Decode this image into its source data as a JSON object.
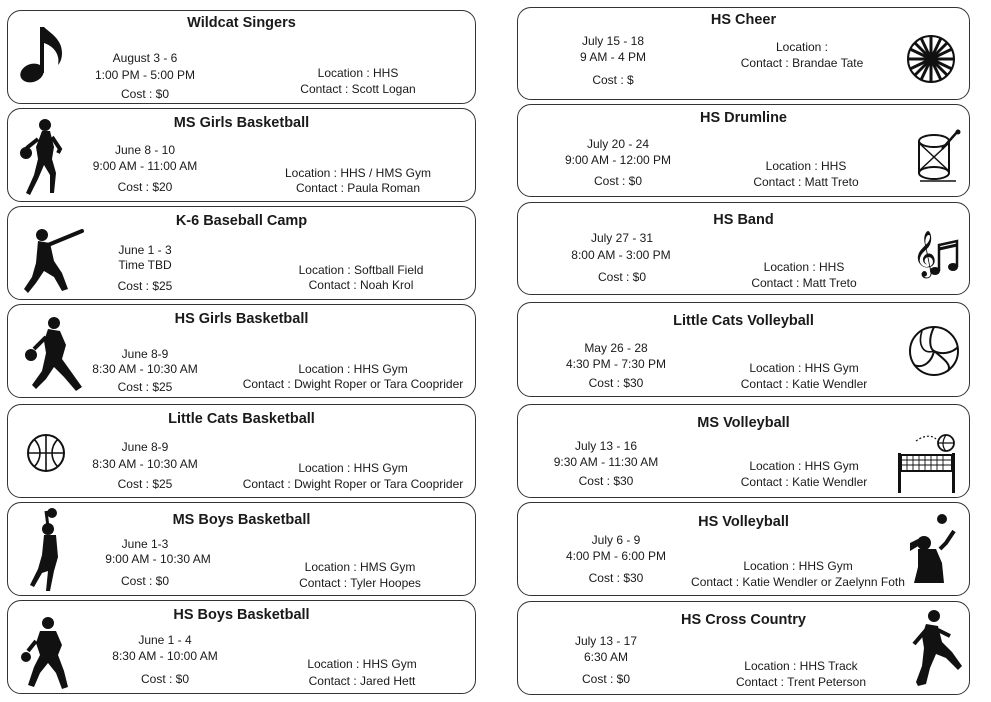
{
  "camps": {
    "left": [
      {
        "title": "Wildcat Singers",
        "dates": "August 3 - 6",
        "times": "1:00 PM - 5:00 PM",
        "cost": "Cost : $0",
        "location": "Location : HHS",
        "contact": "Contact : Scott Logan",
        "icon": "music-note-icon"
      },
      {
        "title": "MS Girls Basketball",
        "dates": "June 8 - 10",
        "times": "9:00 AM - 11:00 AM",
        "cost": "Cost : $20",
        "location": "Location : HHS / HMS Gym",
        "contact": "Contact : Paula Roman",
        "icon": "girl-basketball-player-icon"
      },
      {
        "title": "K-6 Baseball Camp",
        "dates": "June 1 - 3",
        "times": "Time TBD",
        "cost": "Cost : $25",
        "location": "Location : Softball Field",
        "contact": "Contact : Noah Krol",
        "icon": "baseball-batter-icon"
      },
      {
        "title": "HS Girls Basketball",
        "dates": "June 8-9",
        "times": "8:30 AM - 10:30 AM",
        "cost": "Cost : $25",
        "location": "Location : HHS Gym",
        "contact": "Contact : Dwight Roper or Tara Cooprider",
        "icon": "girl-dribbling-icon"
      },
      {
        "title": "Little Cats Basketball",
        "dates": "June 8-9",
        "times": "8:30 AM - 10:30 AM",
        "cost": "Cost : $25",
        "location": "Location : HHS Gym",
        "contact": "Contact : Dwight Roper or Tara Cooprider",
        "icon": "basketball-icon"
      },
      {
        "title": "MS Boys Basketball",
        "dates": "June 1-3",
        "times": "9:00 AM - 10:30 AM",
        "cost": "Cost : $0",
        "location": "Location : HMS Gym",
        "contact": "Contact : Tyler Hoopes",
        "icon": "boy-shooting-icon"
      },
      {
        "title": "HS Boys Basketball",
        "dates": "June 1 - 4",
        "times": "8:30 AM - 10:00 AM",
        "cost": "Cost : $0",
        "location": "Location : HHS Gym",
        "contact": "Contact : Jared Hett",
        "icon": "boy-dribbling-icon"
      }
    ],
    "right": [
      {
        "title": "HS Cheer",
        "dates": "July 15 - 18",
        "times": "9 AM - 4 PM",
        "cost": "Cost : $",
        "location": "Location :",
        "contact": "Contact : Brandae Tate",
        "icon": "pom-pom-icon"
      },
      {
        "title": "HS Drumline",
        "dates": "July 20 - 24",
        "times": "9:00 AM - 12:00 PM",
        "cost": "Cost : $0",
        "location": "Location : HHS",
        "contact": "Contact : Matt Treto",
        "icon": "drum-icon"
      },
      {
        "title": "HS Band",
        "dates": "July 27 - 31",
        "times": "8:00 AM - 3:00 PM",
        "cost": "Cost : $0",
        "location": "Location : HHS",
        "contact": "Contact : Matt Treto",
        "icon": "music-notes-icon"
      },
      {
        "title": "Little Cats Volleyball",
        "dates": "May 26 - 28",
        "times": "4:30 PM - 7:30 PM",
        "cost": "Cost : $30",
        "location": "Location : HHS Gym",
        "contact": "Contact : Katie Wendler",
        "icon": "volleyball-icon"
      },
      {
        "title": "MS Volleyball",
        "dates": "July 13 - 16",
        "times": "9:30 AM - 11:30 AM",
        "cost": "Cost : $30",
        "location": "Location : HHS Gym",
        "contact": "Contact : Katie Wendler",
        "icon": "volleyball-net-icon"
      },
      {
        "title": "HS Volleyball",
        "dates": "July 6 - 9",
        "times": "4:00 PM - 6:00 PM",
        "cost": "Cost : $30",
        "location": "Location : HHS Gym",
        "contact": "Contact : Katie Wendler or Zaelynn Foth",
        "icon": "volleyball-spiker-icon"
      },
      {
        "title": "HS Cross Country",
        "dates": "July 13 - 17",
        "times": "6:30 AM",
        "cost": "Cost : $0",
        "location": "Location : HHS Track",
        "contact": "Contact : Trent Peterson",
        "icon": "runner-icon"
      }
    ]
  }
}
